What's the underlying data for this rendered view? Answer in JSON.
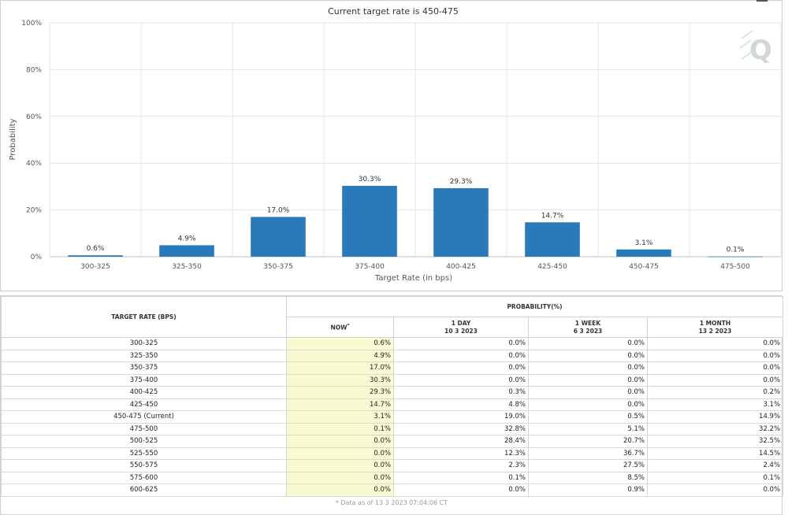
{
  "chart_data": {
    "type": "bar",
    "title": "Current target rate is 450-475",
    "xlabel": "Target Rate (in bps)",
    "ylabel": "Probability",
    "ylim": [
      0,
      100
    ],
    "yticks": [
      "0%",
      "20%",
      "40%",
      "60%",
      "80%",
      "100%"
    ],
    "categories": [
      "300-325",
      "325-350",
      "350-375",
      "375-400",
      "400-425",
      "425-450",
      "450-475",
      "475-500"
    ],
    "values": [
      0.6,
      4.9,
      17.0,
      30.3,
      29.3,
      14.7,
      3.1,
      0.1
    ],
    "data_labels": [
      "0.6%",
      "4.9%",
      "17.0%",
      "30.3%",
      "29.3%",
      "14.7%",
      "3.1%",
      "0.1%"
    ],
    "bar_color": "#2a7ab9",
    "grid": true,
    "legend": "none"
  },
  "table": {
    "header_target": "TARGET RATE (BPS)",
    "header_probability": "PROBABILITY(%)",
    "col_now": "NOW",
    "col_now_marker": "*",
    "col_1day_label": "1 DAY",
    "col_1day_date": "10 3 2023",
    "col_1week_label": "1 WEEK",
    "col_1week_date": "6 3 2023",
    "col_1month_label": "1 MONTH",
    "col_1month_date": "13 2 2023",
    "rows": [
      [
        "300-325",
        "0.6%",
        "0.0%",
        "0.0%",
        "0.0%"
      ],
      [
        "325-350",
        "4.9%",
        "0.0%",
        "0.0%",
        "0.0%"
      ],
      [
        "350-375",
        "17.0%",
        "0.0%",
        "0.0%",
        "0.0%"
      ],
      [
        "375-400",
        "30.3%",
        "0.0%",
        "0.0%",
        "0.0%"
      ],
      [
        "400-425",
        "29.3%",
        "0.3%",
        "0.0%",
        "0.2%"
      ],
      [
        "425-450",
        "14.7%",
        "4.8%",
        "0.0%",
        "3.1%"
      ],
      [
        "450-475 (Current)",
        "3.1%",
        "19.0%",
        "0.5%",
        "14.9%"
      ],
      [
        "475-500",
        "0.1%",
        "32.8%",
        "5.1%",
        "32.2%"
      ],
      [
        "500-525",
        "0.0%",
        "28.4%",
        "20.7%",
        "32.5%"
      ],
      [
        "525-550",
        "0.0%",
        "12.3%",
        "36.7%",
        "14.5%"
      ],
      [
        "550-575",
        "0.0%",
        "2.3%",
        "27.5%",
        "2.4%"
      ],
      [
        "575-600",
        "0.0%",
        "0.1%",
        "8.5%",
        "0.1%"
      ],
      [
        "600-625",
        "0.0%",
        "0.0%",
        "0.9%",
        "0.0%"
      ]
    ],
    "footnote": "* Data as of 13 3 2023 07:04:06 CT"
  },
  "watermark_icon": "q-logo-icon"
}
